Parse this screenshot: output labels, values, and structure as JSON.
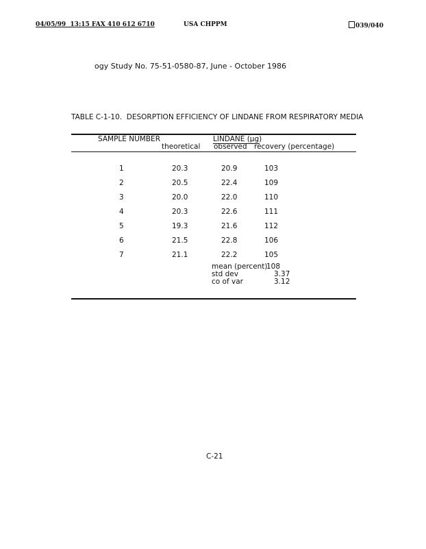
{
  "fax_header": {
    "left": "04/05/99  13:15 FAX 410 612 6710",
    "center": "USA CHPPM",
    "right": "039/040",
    "page_icon": "fax-page-icon"
  },
  "study_line": "ogy Study No. 75-51-0580-87, June - October 1986",
  "table": {
    "title": "TABLE C-1-10.  DESORPTION EFFICIENCY OF LINDANE FROM RESPIRATORY MEDIA",
    "group_header": "LINDANE (µg)",
    "columns": [
      "SAMPLE NUMBER",
      "theoretical",
      "observed",
      "recovery (percentage)"
    ],
    "rows": [
      [
        "1",
        "20.3",
        "20.9",
        "103"
      ],
      [
        "2",
        "20.5",
        "22.4",
        "109"
      ],
      [
        "3",
        "20.0",
        "22.0",
        "110"
      ],
      [
        "4",
        "20.3",
        "22.6",
        "111"
      ],
      [
        "5",
        "19.3",
        "21.6",
        "112"
      ],
      [
        "6",
        "21.5",
        "22.8",
        "106"
      ],
      [
        "7",
        "21.1",
        "22.2",
        "105"
      ]
    ],
    "summary": [
      {
        "label": "mean (percent)",
        "value": "108"
      },
      {
        "label": "std dev",
        "value": "3.37"
      },
      {
        "label": "co of var",
        "value": "3.12"
      }
    ]
  },
  "page_number": "C-21"
}
